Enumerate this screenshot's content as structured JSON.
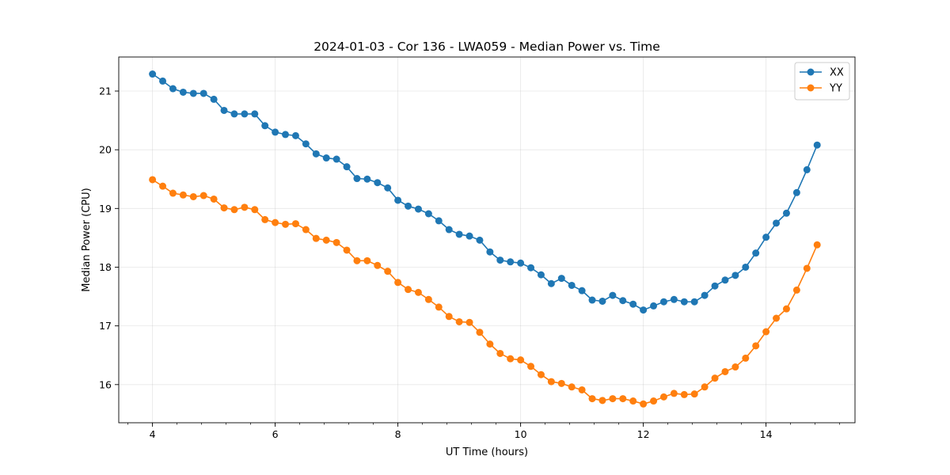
{
  "chart_data": {
    "type": "line",
    "title": "2024-01-03 - Cor 136 - LWA059 - Median Power vs. Time",
    "xlabel": "UT Time (hours)",
    "ylabel": "Median Power (CPU)",
    "xlim": [
      3.45,
      15.45
    ],
    "ylim": [
      15.35,
      21.58
    ],
    "xticks": [
      4,
      6,
      8,
      10,
      12,
      14
    ],
    "xtick_labels": [
      "4",
      "6",
      "8",
      "10",
      "12",
      "14"
    ],
    "yticks": [
      16,
      17,
      18,
      19,
      20,
      21
    ],
    "ytick_labels": [
      "16",
      "17",
      "18",
      "19",
      "20",
      "21"
    ],
    "x_minor_step": 0.4,
    "grid": true,
    "legend_position": "top-right",
    "x": [
      4.0,
      4.1667,
      4.3333,
      4.5,
      4.6667,
      4.8333,
      5.0,
      5.1667,
      5.3333,
      5.5,
      5.6667,
      5.8333,
      6.0,
      6.1667,
      6.3333,
      6.5,
      6.6667,
      6.8333,
      7.0,
      7.1667,
      7.3333,
      7.5,
      7.6667,
      7.8333,
      8.0,
      8.1667,
      8.3333,
      8.5,
      8.6667,
      8.8333,
      9.0,
      9.1667,
      9.3333,
      9.5,
      9.6667,
      9.8333,
      10.0,
      10.1667,
      10.3333,
      10.5,
      10.6667,
      10.8333,
      11.0,
      11.1667,
      11.3333,
      11.5,
      11.6667,
      11.8333,
      12.0,
      12.1667,
      12.3333,
      12.5,
      12.6667,
      12.8333,
      13.0,
      13.1667,
      13.3333,
      13.5,
      13.6667,
      13.8333,
      14.0,
      14.1667,
      14.3333,
      14.5,
      14.6667,
      14.8333
    ],
    "series": [
      {
        "name": "XX",
        "color": "#1f77b4",
        "values": [
          21.29,
          21.17,
          21.04,
          20.98,
          20.96,
          20.96,
          20.86,
          20.67,
          20.61,
          20.61,
          20.61,
          20.41,
          20.3,
          20.26,
          20.24,
          20.1,
          19.93,
          19.86,
          19.84,
          19.71,
          19.51,
          19.5,
          19.44,
          19.35,
          19.14,
          19.04,
          18.99,
          18.91,
          18.79,
          18.64,
          18.56,
          18.53,
          18.46,
          18.26,
          18.12,
          18.09,
          18.07,
          17.99,
          17.87,
          17.72,
          17.81,
          17.69,
          17.6,
          17.44,
          17.42,
          17.52,
          17.43,
          17.37,
          17.27,
          17.34,
          17.41,
          17.45,
          17.41,
          17.41,
          17.52,
          17.68,
          17.78,
          17.86,
          18.0,
          18.24,
          18.51,
          18.75,
          18.92,
          19.27,
          19.66,
          20.08
        ]
      },
      {
        "name": "YY",
        "color": "#ff7f0e",
        "values": [
          19.49,
          19.38,
          19.26,
          19.23,
          19.2,
          19.22,
          19.16,
          19.01,
          18.98,
          19.02,
          18.98,
          18.81,
          18.76,
          18.73,
          18.74,
          18.64,
          18.49,
          18.46,
          18.42,
          18.29,
          18.11,
          18.11,
          18.03,
          17.93,
          17.74,
          17.62,
          17.57,
          17.45,
          17.32,
          17.16,
          17.07,
          17.06,
          16.89,
          16.69,
          16.53,
          16.44,
          16.42,
          16.31,
          16.17,
          16.05,
          16.02,
          15.96,
          15.91,
          15.76,
          15.73,
          15.76,
          15.76,
          15.72,
          15.67,
          15.72,
          15.79,
          15.85,
          15.83,
          15.84,
          15.96,
          16.11,
          16.22,
          16.3,
          16.45,
          16.66,
          16.9,
          17.13,
          17.29,
          17.61,
          17.98,
          18.38
        ]
      }
    ]
  }
}
